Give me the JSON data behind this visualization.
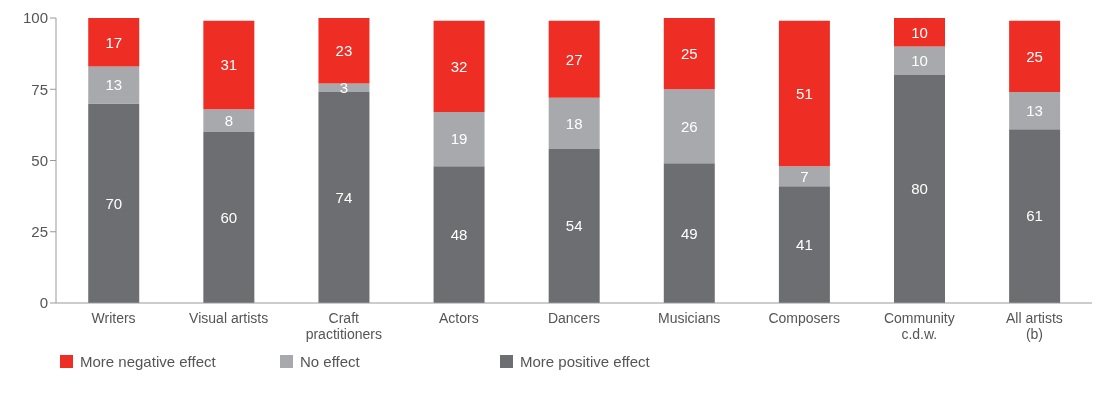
{
  "chart_data": {
    "type": "bar",
    "stacked": true,
    "categories": [
      "Writers",
      "Visual artists",
      "Craft\npractitioners",
      "Actors",
      "Dancers",
      "Musicians",
      "Composers",
      "Community\nc.d.w.",
      "All artists\n(b)"
    ],
    "series": [
      {
        "name": "More positive effect",
        "color": "#6d6e71",
        "values": [
          70,
          60,
          74,
          48,
          54,
          49,
          41,
          80,
          61
        ]
      },
      {
        "name": "No effect",
        "color": "#a7a9ac",
        "values": [
          13,
          8,
          3,
          19,
          18,
          26,
          7,
          10,
          13
        ]
      },
      {
        "name": "More negative effect",
        "color": "#ee2d24",
        "values": [
          17,
          31,
          23,
          32,
          27,
          25,
          51,
          10,
          25
        ]
      }
    ],
    "ylim": [
      0,
      100
    ],
    "yticks": [
      0,
      25,
      50,
      75,
      100
    ],
    "grid": false,
    "legend": "bottom left",
    "data_labels": true
  }
}
